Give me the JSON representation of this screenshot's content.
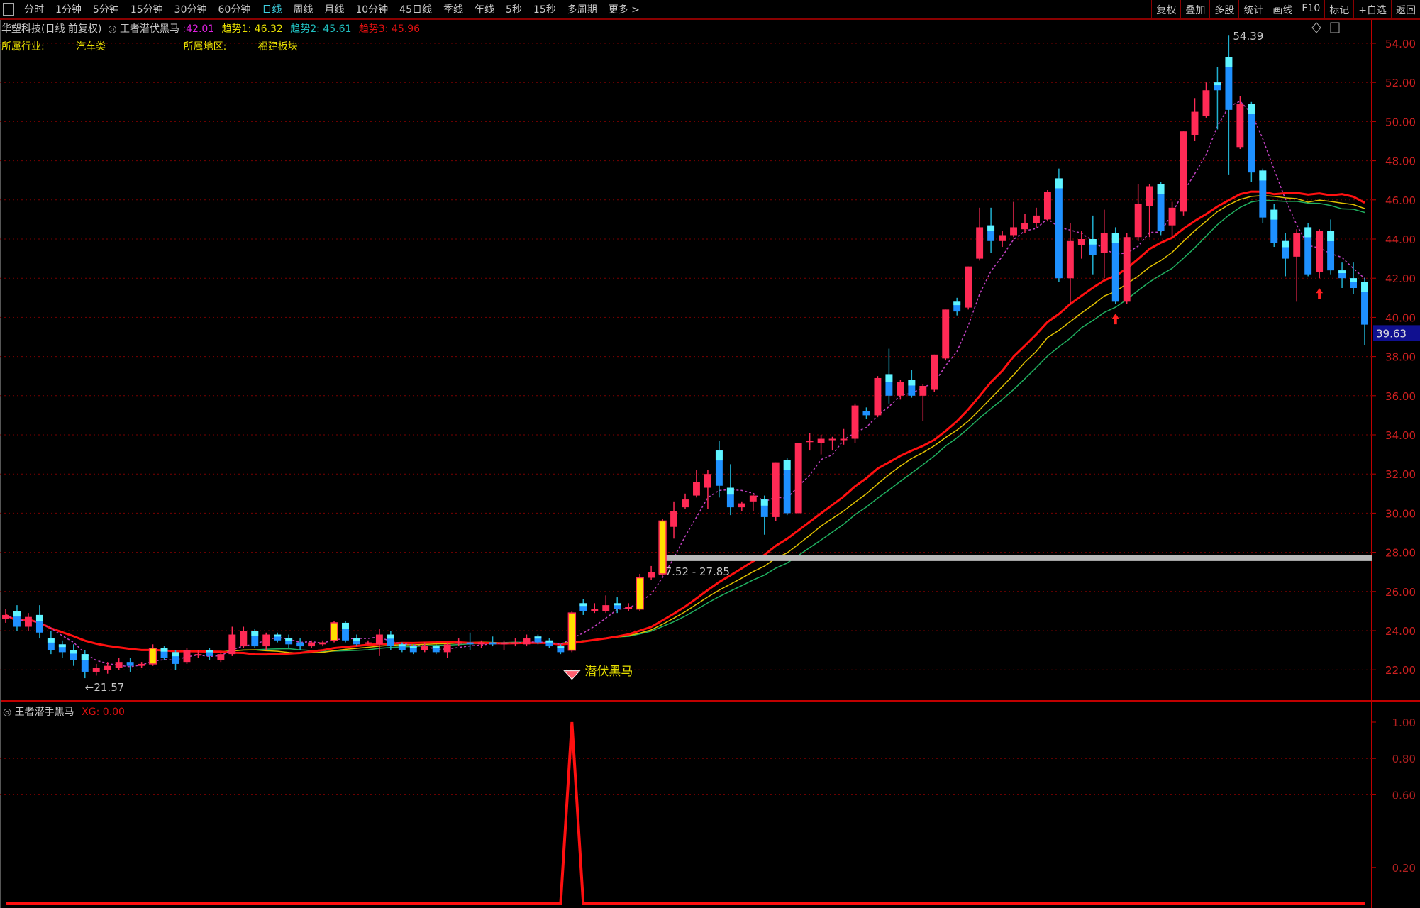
{
  "toolbar": {
    "periods": [
      "分时",
      "1分钟",
      "5分钟",
      "15分钟",
      "30分钟",
      "60分钟",
      "日线",
      "周线",
      "月线",
      "10分钟",
      "45日线",
      "季线",
      "年线",
      "5秒",
      "15秒",
      "多周期",
      "更多 >"
    ],
    "active": "日线",
    "right": [
      "复权",
      "叠加",
      "多股",
      "统计",
      "画线",
      "F10",
      "标记",
      "+自选",
      "返回"
    ]
  },
  "header": {
    "stock": "华塑科技(日线 前复权)",
    "indicator": "王者潜伏黑马",
    "value": ":42.01",
    "trend1": "趋势1: 46.32",
    "trend2": "趋势2: 45.61",
    "trend3": "趋势3: 45.96",
    "industry_label": "所属行业:",
    "industry": "汽车类",
    "region_label": "所属地区:",
    "region": "福建板块"
  },
  "colors": {
    "up": "#ff2a55",
    "down": "#1e90ff",
    "down_top": "#5ff5ff",
    "special": "#ffe000",
    "ma": "#ff1010",
    "ma5": "#c040c0",
    "grid": "#7a0000",
    "axis": "#c00000",
    "value_magenta": "#e020e0",
    "value_yellow": "#e8e000",
    "value_cyan": "#20c0c0",
    "value_red": "#e01010"
  },
  "price_axis": {
    "ticks": [
      "54.00",
      "52.00",
      "50.00",
      "48.00",
      "46.00",
      "44.00",
      "42.00",
      "40.00",
      "38.00",
      "36.00",
      "34.00",
      "32.00",
      "30.00",
      "28.00",
      "26.00",
      "24.00",
      "22.00"
    ],
    "current": "39.63"
  },
  "annotations": {
    "high": "54.39",
    "low": "←21.57",
    "range": "27.52 - 27.85",
    "range_level": 27.7,
    "signal_label": "潜伏黑马",
    "arrow_indices": [
      98,
      116
    ]
  },
  "lower": {
    "title": "王者潜手黑马",
    "value": "XG: 0.00",
    "ticks": [
      "1.00",
      "0.80",
      "0.60",
      "0.20"
    ]
  },
  "chart": {
    "type": "candlestick",
    "signal_index": 50,
    "high_index": 108,
    "low_index": 7,
    "special_indices": [
      13,
      29,
      50,
      56,
      58
    ],
    "ohlc": [
      [
        24.6,
        25.1,
        24.4,
        24.8
      ],
      [
        25.0,
        25.3,
        24.0,
        24.2
      ],
      [
        24.2,
        24.9,
        24.0,
        24.7
      ],
      [
        24.8,
        25.3,
        23.6,
        23.9
      ],
      [
        23.6,
        24.0,
        22.8,
        23.0
      ],
      [
        23.3,
        23.5,
        22.6,
        22.9
      ],
      [
        23.0,
        23.3,
        22.2,
        22.5
      ],
      [
        22.8,
        23.0,
        21.57,
        21.9
      ],
      [
        21.9,
        22.3,
        21.7,
        22.1
      ],
      [
        22.0,
        22.4,
        21.8,
        22.2
      ],
      [
        22.1,
        22.6,
        22.0,
        22.4
      ],
      [
        22.4,
        22.6,
        21.9,
        22.2
      ],
      [
        22.2,
        22.4,
        22.1,
        22.3
      ],
      [
        22.3,
        23.3,
        22.2,
        23.1
      ],
      [
        23.1,
        23.2,
        22.5,
        22.6
      ],
      [
        22.9,
        23.0,
        22.0,
        22.3
      ],
      [
        22.4,
        23.1,
        22.3,
        23.0
      ],
      [
        22.8,
        23.0,
        22.6,
        22.8
      ],
      [
        23.0,
        23.1,
        22.5,
        22.7
      ],
      [
        22.5,
        22.9,
        22.4,
        22.8
      ],
      [
        22.8,
        24.2,
        22.7,
        23.8
      ],
      [
        23.2,
        24.2,
        23.1,
        24.0
      ],
      [
        24.0,
        24.1,
        23.1,
        23.2
      ],
      [
        23.2,
        23.9,
        23.0,
        23.8
      ],
      [
        23.8,
        23.9,
        23.4,
        23.5
      ],
      [
        23.6,
        23.8,
        23.1,
        23.3
      ],
      [
        23.4,
        23.6,
        23.0,
        23.2
      ],
      [
        23.2,
        23.5,
        23.1,
        23.4
      ],
      [
        23.3,
        23.5,
        23.2,
        23.4
      ],
      [
        23.5,
        24.5,
        23.4,
        24.4
      ],
      [
        24.4,
        24.5,
        23.4,
        23.5
      ],
      [
        23.6,
        23.8,
        23.2,
        23.3
      ],
      [
        23.4,
        23.5,
        23.3,
        23.4
      ],
      [
        23.3,
        24.1,
        22.7,
        23.8
      ],
      [
        23.8,
        24.0,
        23.0,
        23.2
      ],
      [
        23.3,
        23.4,
        22.9,
        23.0
      ],
      [
        23.2,
        23.3,
        22.8,
        22.9
      ],
      [
        23.0,
        23.4,
        22.9,
        23.2
      ],
      [
        23.2,
        23.3,
        22.8,
        22.9
      ],
      [
        22.9,
        23.4,
        22.6,
        23.3
      ],
      [
        23.4,
        23.6,
        23.2,
        23.4
      ],
      [
        23.4,
        23.9,
        23.0,
        23.3
      ],
      [
        23.3,
        23.5,
        23.1,
        23.4
      ],
      [
        23.4,
        23.7,
        23.2,
        23.3
      ],
      [
        23.3,
        23.5,
        23.0,
        23.4
      ],
      [
        23.4,
        23.6,
        23.2,
        23.4
      ],
      [
        23.3,
        23.8,
        23.2,
        23.6
      ],
      [
        23.7,
        23.8,
        23.3,
        23.4
      ],
      [
        23.5,
        23.6,
        23.1,
        23.2
      ],
      [
        23.2,
        23.3,
        22.8,
        22.9
      ],
      [
        23.0,
        25.0,
        22.9,
        24.9
      ],
      [
        25.4,
        25.6,
        24.8,
        25.0
      ],
      [
        25.0,
        25.4,
        24.9,
        25.1
      ],
      [
        25.0,
        25.8,
        24.9,
        25.3
      ],
      [
        25.4,
        25.7,
        24.9,
        25.1
      ],
      [
        25.1,
        25.4,
        25.0,
        25.2
      ],
      [
        25.1,
        26.9,
        25.0,
        26.7
      ],
      [
        26.7,
        27.3,
        26.6,
        27.0
      ],
      [
        26.9,
        29.7,
        26.8,
        29.6
      ],
      [
        29.3,
        30.6,
        28.7,
        30.1
      ],
      [
        30.3,
        31.0,
        30.2,
        30.7
      ],
      [
        30.9,
        32.2,
        30.8,
        31.6
      ],
      [
        31.3,
        32.2,
        30.2,
        32.0
      ],
      [
        33.2,
        33.7,
        30.8,
        31.4
      ],
      [
        31.3,
        32.5,
        29.9,
        30.3
      ],
      [
        30.3,
        30.6,
        30.1,
        30.5
      ],
      [
        30.6,
        31.0,
        30.1,
        30.9
      ],
      [
        30.7,
        30.9,
        28.9,
        29.8
      ],
      [
        29.8,
        32.6,
        29.6,
        32.6
      ],
      [
        32.7,
        32.8,
        29.9,
        30.0
      ],
      [
        30.0,
        33.6,
        30.0,
        33.6
      ],
      [
        33.7,
        34.1,
        33.2,
        33.7
      ],
      [
        33.6,
        34.0,
        33.0,
        33.8
      ],
      [
        33.8,
        33.9,
        33.2,
        33.8
      ],
      [
        33.8,
        34.3,
        33.5,
        33.8
      ],
      [
        33.8,
        35.6,
        33.6,
        35.5
      ],
      [
        35.2,
        35.4,
        34.8,
        35.0
      ],
      [
        35.0,
        37.0,
        34.9,
        36.9
      ],
      [
        37.1,
        38.4,
        35.6,
        36.0
      ],
      [
        36.0,
        36.8,
        35.8,
        36.7
      ],
      [
        36.8,
        37.3,
        35.9,
        36.0
      ],
      [
        36.0,
        36.6,
        34.7,
        36.5
      ],
      [
        36.3,
        38.1,
        36.2,
        38.1
      ],
      [
        37.9,
        40.4,
        37.8,
        40.4
      ],
      [
        40.8,
        41.0,
        40.1,
        40.3
      ],
      [
        40.5,
        42.6,
        40.4,
        42.6
      ],
      [
        43.0,
        45.6,
        42.9,
        44.6
      ],
      [
        44.7,
        45.6,
        43.3,
        43.9
      ],
      [
        43.9,
        44.4,
        43.6,
        44.2
      ],
      [
        44.2,
        45.9,
        44.1,
        44.6
      ],
      [
        44.5,
        45.3,
        44.3,
        44.8
      ],
      [
        44.8,
        45.6,
        44.6,
        45.2
      ],
      [
        45.0,
        46.5,
        44.9,
        46.4
      ],
      [
        47.1,
        47.6,
        41.8,
        42.0
      ],
      [
        42.0,
        44.8,
        40.7,
        43.9
      ],
      [
        43.7,
        44.4,
        43.0,
        44.0
      ],
      [
        44.0,
        45.2,
        42.2,
        43.2
      ],
      [
        43.3,
        45.5,
        42.0,
        44.3
      ],
      [
        44.3,
        44.6,
        40.7,
        40.8
      ],
      [
        40.8,
        44.3,
        40.7,
        44.1
      ],
      [
        44.1,
        46.8,
        43.9,
        45.8
      ],
      [
        45.7,
        46.8,
        44.1,
        46.7
      ],
      [
        46.8,
        46.9,
        44.2,
        44.4
      ],
      [
        44.7,
        45.9,
        44.1,
        45.6
      ],
      [
        45.4,
        49.5,
        45.2,
        49.5
      ],
      [
        49.3,
        51.2,
        49.0,
        50.5
      ],
      [
        50.3,
        52.0,
        50.2,
        51.6
      ],
      [
        52.0,
        52.8,
        49.6,
        51.6
      ],
      [
        53.3,
        54.39,
        47.3,
        50.6
      ],
      [
        48.7,
        51.3,
        48.6,
        50.9
      ],
      [
        50.9,
        51.0,
        46.9,
        47.4
      ],
      [
        47.5,
        47.6,
        44.8,
        45.1
      ],
      [
        45.5,
        45.8,
        43.6,
        43.8
      ],
      [
        43.9,
        44.3,
        42.1,
        43.0
      ],
      [
        43.1,
        44.5,
        40.8,
        44.3
      ],
      [
        44.6,
        44.8,
        42.1,
        42.2
      ],
      [
        42.3,
        44.5,
        42.0,
        44.4
      ],
      [
        44.4,
        45.0,
        42.2,
        42.4
      ],
      [
        42.4,
        42.8,
        41.5,
        42.0
      ],
      [
        42.0,
        42.8,
        41.2,
        41.5
      ],
      [
        41.8,
        42.0,
        38.6,
        39.63
      ]
    ]
  }
}
